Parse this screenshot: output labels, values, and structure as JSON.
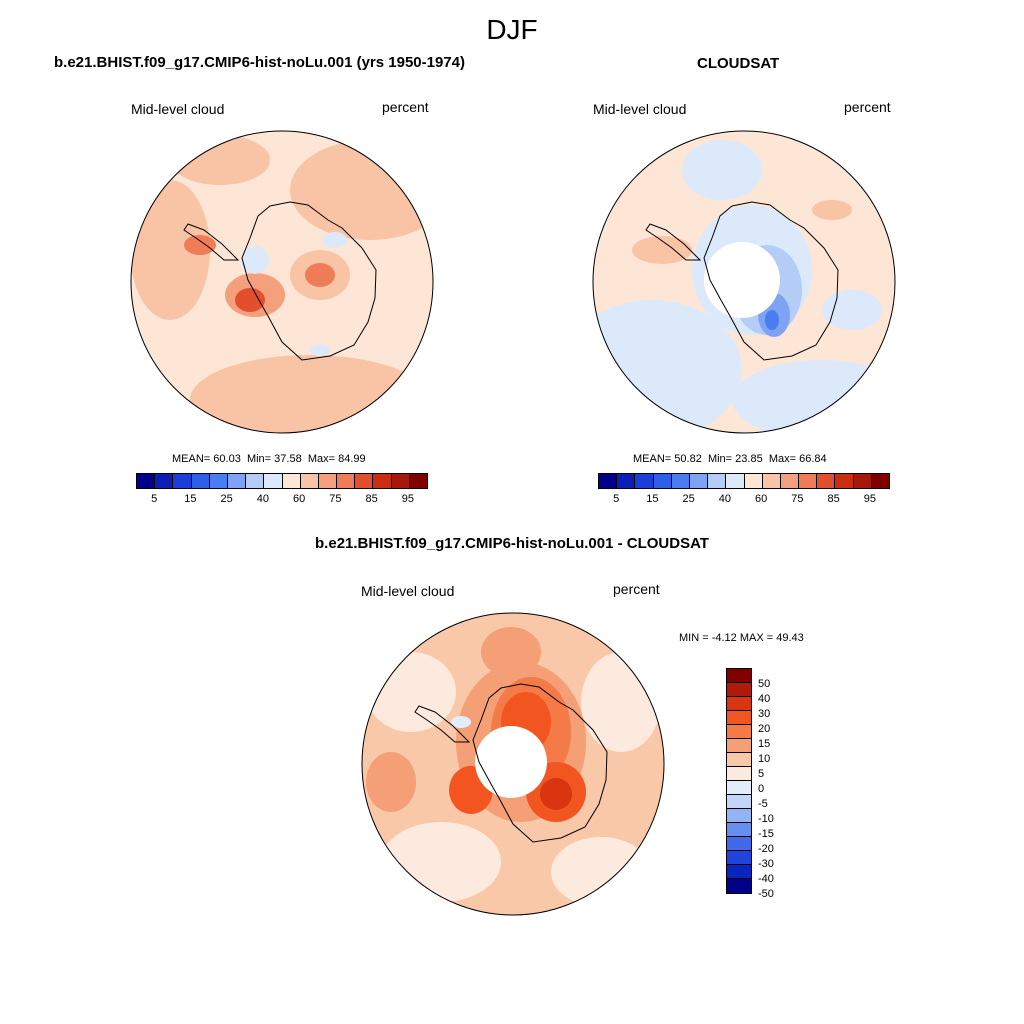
{
  "season": "DJF",
  "panels": {
    "model": {
      "title": "b.e21.BHIST.f09_g17.CMIP6-hist-noLu.001 (yrs 1950-1974)",
      "variable": "Mid-level cloud",
      "units": "percent",
      "stats": {
        "mean_label": "MEAN=",
        "mean": "60.03",
        "min_label": "Min=",
        "min": "37.58",
        "max_label": "Max=",
        "max": "84.99"
      }
    },
    "obs": {
      "title": "CLOUDSAT",
      "variable": "Mid-level cloud",
      "units": "percent",
      "stats": {
        "mean_label": "MEAN=",
        "mean": "50.82",
        "min_label": "Min=",
        "min": "23.85",
        "max_label": "Max=",
        "max": "66.84"
      }
    },
    "diff": {
      "title": "b.e21.BHIST.f09_g17.CMIP6-hist-noLu.001 - CLOUDSAT",
      "variable": "Mid-level cloud",
      "units": "percent",
      "stats": {
        "min_label": "MIN =",
        "min": "-4.12",
        "max_label": "MAX =",
        "max": "49.43"
      }
    }
  },
  "chart_data": [
    {
      "type": "heatmap",
      "projection": "south polar stereographic",
      "title": "b.e21.BHIST.f09_g17.CMIP6-hist-noLu.001 (yrs 1950-1974)",
      "subtitle": "Mid-level cloud (percent)",
      "mean": 60.03,
      "min": 37.58,
      "max": 84.99,
      "colorbar_levels": [
        5,
        10,
        15,
        20,
        25,
        30,
        40,
        50,
        60,
        70,
        75,
        80,
        85,
        90,
        95
      ],
      "colorbar_labels": [
        "5",
        "15",
        "25",
        "40",
        "60",
        "75",
        "85",
        "95"
      ]
    },
    {
      "type": "heatmap",
      "projection": "south polar stereographic",
      "title": "CLOUDSAT",
      "subtitle": "Mid-level cloud (percent)",
      "mean": 50.82,
      "min": 23.85,
      "max": 66.84,
      "colorbar_levels": [
        5,
        10,
        15,
        20,
        25,
        30,
        40,
        50,
        60,
        70,
        75,
        80,
        85,
        90,
        95
      ],
      "colorbar_labels": [
        "5",
        "15",
        "25",
        "40",
        "60",
        "75",
        "85",
        "95"
      ]
    },
    {
      "type": "heatmap",
      "projection": "south polar stereographic",
      "title": "b.e21.BHIST.f09_g17.CMIP6-hist-noLu.001 - CLOUDSAT",
      "subtitle": "Mid-level cloud (percent)",
      "min": -4.12,
      "max": 49.43,
      "colorbar_labels": [
        "50",
        "40",
        "30",
        "20",
        "15",
        "10",
        "5",
        "0",
        "-5",
        "-10",
        "-15",
        "-20",
        "-30",
        "-40",
        "-50"
      ]
    }
  ],
  "colors": {
    "seq": [
      "#00008a",
      "#0b1fb4",
      "#1a3fd8",
      "#2d5fe8",
      "#4a7df0",
      "#7ea3f4",
      "#b4cdf6",
      "#dce9fa",
      "#fde6d6",
      "#f9c3a5",
      "#f4a07c",
      "#ee7c56",
      "#e34f2c",
      "#c92d12",
      "#a8180a",
      "#800000"
    ],
    "div": [
      "#800000",
      "#b01a08",
      "#d93510",
      "#f35520",
      "#f47a48",
      "#f49f76",
      "#f9c8a8",
      "#fdeade",
      "#e2edfb",
      "#c2d6f7",
      "#92b4f3",
      "#6690ef",
      "#3f6ae9",
      "#1f45dd",
      "#0a25bd",
      "#00008a"
    ]
  }
}
